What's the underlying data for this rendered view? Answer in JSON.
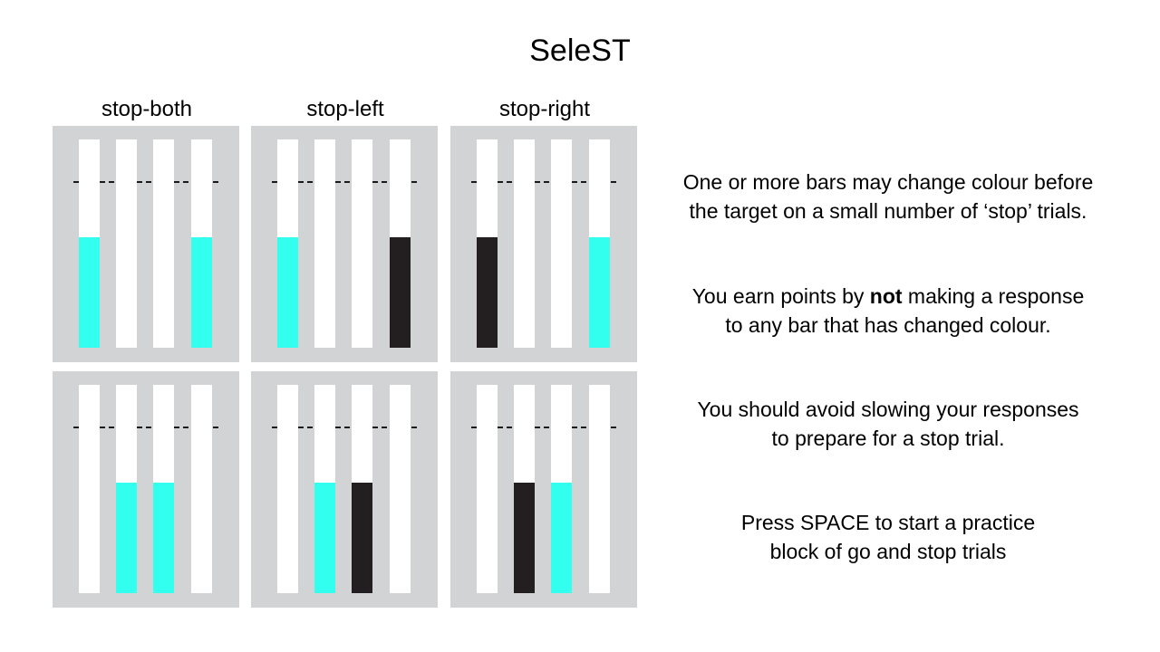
{
  "title": "SeleST",
  "columns": [
    "stop-both",
    "stop-left",
    "stop-right"
  ],
  "colors": {
    "go": "#33ffee",
    "stop": "#231f20",
    "panel": "#d2d3d4",
    "bar": "#ffffff"
  },
  "panels": [
    {
      "condition": "stop-both",
      "fill_level": 0.53,
      "bars": [
        "go",
        "empty",
        "empty",
        "go"
      ]
    },
    {
      "condition": "stop-left",
      "fill_level": 0.53,
      "bars": [
        "go",
        "empty",
        "empty",
        "stop"
      ]
    },
    {
      "condition": "stop-right",
      "fill_level": 0.53,
      "bars": [
        "stop",
        "empty",
        "empty",
        "go"
      ]
    },
    {
      "condition": "stop-both",
      "fill_level": 0.53,
      "bars": [
        "empty",
        "go",
        "go",
        "empty"
      ]
    },
    {
      "condition": "stop-left",
      "fill_level": 0.53,
      "bars": [
        "empty",
        "go",
        "stop",
        "empty"
      ]
    },
    {
      "condition": "stop-right",
      "fill_level": 0.53,
      "bars": [
        "empty",
        "stop",
        "go",
        "empty"
      ]
    }
  ],
  "instructions": {
    "p1_line1": "One or more bars may change colour before",
    "p1_line2": "the target on a small number of ‘stop’ trials.",
    "p2_line1_pre": "You earn points by ",
    "p2_line1_bold": "not",
    "p2_line1_post": " making a response",
    "p2_line2": "to any bar that has changed colour.",
    "p3_line1": "You should avoid slowing your responses",
    "p3_line2": "to prepare for a stop trial.",
    "p4_line1": "Press SPACE to start a practice",
    "p4_line2": "block of go and stop trials"
  }
}
